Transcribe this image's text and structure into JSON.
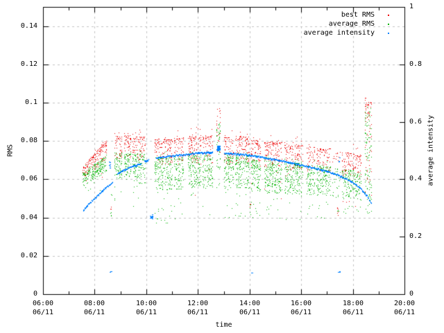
{
  "chart_data": {
    "type": "scatter",
    "title": "",
    "background": "#ffffff",
    "grid": {
      "color": "#c4c4c4",
      "dash": [
        3,
        4
      ]
    },
    "x_axis": {
      "label": "time",
      "range_hours": [
        6,
        20
      ],
      "minor_hours": [
        7,
        9,
        11,
        13,
        15,
        17,
        19
      ],
      "ticks": [
        {
          "hour": 6,
          "time": "06:00",
          "date": "06/11"
        },
        {
          "hour": 8,
          "time": "08:00",
          "date": "06/11"
        },
        {
          "hour": 10,
          "time": "10:00",
          "date": "06/11"
        },
        {
          "hour": 12,
          "time": "12:00",
          "date": "06/11"
        },
        {
          "hour": 14,
          "time": "14:00",
          "date": "06/11"
        },
        {
          "hour": 16,
          "time": "16:00",
          "date": "06/11"
        },
        {
          "hour": 18,
          "time": "18:00",
          "date": "06/11"
        },
        {
          "hour": 20,
          "time": "20:00",
          "date": "06/11"
        }
      ]
    },
    "y_left": {
      "label": "RMS",
      "range": [
        0,
        0.15
      ],
      "grid_values": [
        0.02,
        0.04,
        0.06,
        0.08,
        0.1,
        0.12,
        0.14
      ],
      "ticks": [
        {
          "value": 0,
          "label": "0"
        },
        {
          "value": 0.02,
          "label": "0.02"
        },
        {
          "value": 0.04,
          "label": "0.04"
        },
        {
          "value": 0.06,
          "label": "0.06"
        },
        {
          "value": 0.08,
          "label": "0.08"
        },
        {
          "value": 0.1,
          "label": "0.1"
        },
        {
          "value": 0.12,
          "label": "0.12"
        },
        {
          "value": 0.14,
          "label": "0.14"
        }
      ]
    },
    "y_right": {
      "label": "average intensity",
      "range": [
        0,
        1
      ],
      "ticks": [
        {
          "value": 0,
          "label": "0"
        },
        {
          "value": 0.2,
          "label": "0.2"
        },
        {
          "value": 0.4,
          "label": "0.4"
        },
        {
          "value": 0.6,
          "label": "0.6"
        },
        {
          "value": 0.8,
          "label": "0.8"
        },
        {
          "value": 1,
          "label": "1"
        }
      ]
    },
    "legend": [
      {
        "label": "best RMS",
        "color": "#ee0000"
      },
      {
        "label": "average RMS",
        "color": "#00b400"
      },
      {
        "label": "average intensity",
        "color": "#0080ff"
      }
    ],
    "series": {
      "rms_clusters_note": "dense scatter stripes; t in hours on 06/11, RMS band values read from left axis",
      "rms_stripes": [
        {
          "t": [
            7.52,
            8.47
          ],
          "rT": [
            0.0665,
            0.0805
          ],
          "rB": [
            0.0605,
            0.07
          ],
          "gT": [
            0.0635,
            0.0725
          ],
          "gB": [
            0.0565,
            0.064
          ],
          "d": 1.1,
          "oA": 0.004,
          "tD": 0.008,
          "tP": 0.025
        },
        {
          "t": [
            8.76,
            9.06
          ],
          "rT": 0.0825,
          "rB": 0.0705,
          "gT": 0.074,
          "gB": 0.0605,
          "d": 1,
          "oA": 0.005,
          "tD": 0.013,
          "tP": 0.04
        },
        {
          "t": [
            9.12,
            9.4
          ],
          "rT": 0.083,
          "rB": 0.071,
          "gT": 0.074,
          "gB": 0.06,
          "d": 1,
          "oA": 0.005,
          "tD": 0.014,
          "tP": 0.04
        },
        {
          "t": [
            9.46,
            9.97
          ],
          "rT": 0.0825,
          "rB": 0.07,
          "gT": 0.0735,
          "gB": 0.058,
          "d": 1,
          "oA": 0.006,
          "tD": 0.014,
          "tP": 0.05
        },
        {
          "t": [
            10.3,
            11.0
          ],
          "rT": 0.081,
          "rB": 0.0675,
          "gT": 0.0715,
          "gB": 0.0545,
          "d": 1,
          "oA": 0.009,
          "tD": 0.018,
          "tP": 0.07
        },
        {
          "t": [
            11.06,
            11.44
          ],
          "rT": 0.0815,
          "rB": 0.068,
          "gT": 0.072,
          "gB": 0.055,
          "d": 1,
          "oA": 0.009,
          "tD": 0.017,
          "tP": 0.06
        },
        {
          "t": [
            11.6,
            12.12
          ],
          "rT": 0.0825,
          "rB": 0.0685,
          "gT": 0.0725,
          "gB": 0.0555,
          "d": 1,
          "oA": 0.01,
          "tD": 0.017,
          "tP": 0.06
        },
        {
          "t": [
            12.17,
            12.58
          ],
          "rT": 0.0825,
          "rB": 0.0685,
          "gT": 0.0725,
          "gB": 0.0555,
          "d": 1,
          "oA": 0.008,
          "tD": 0.015,
          "tP": 0.06
        },
        {
          "t": [
            12.7,
            12.86
          ],
          "rT": 0.096,
          "rB": 0.074,
          "gT": 0.089,
          "gB": 0.063,
          "d": 0.55,
          "oA": 0.006,
          "tD": 0.009,
          "tP": 0.05
        },
        {
          "t": [
            12.99,
            13.37
          ],
          "rT": 0.082,
          "rB": 0.068,
          "gT": 0.072,
          "gB": 0.055,
          "d": 1,
          "oA": 0.007,
          "tD": 0.015,
          "tP": 0.06
        },
        {
          "t": [
            13.42,
            13.99
          ],
          "rT": 0.0825,
          "rB": 0.0685,
          "gT": 0.0725,
          "gB": 0.0555,
          "d": 1,
          "oA": 0.009,
          "tD": 0.017,
          "tP": 0.06
        },
        {
          "t": [
            14.06,
            14.42
          ],
          "rT": 0.0805,
          "rB": 0.067,
          "gT": 0.0705,
          "gB": 0.054,
          "d": 1,
          "oA": 0.008,
          "tD": 0.014,
          "tP": 0.06
        },
        {
          "t": [
            14.55,
            15.26
          ],
          "rT": 0.0795,
          "rB": 0.066,
          "gT": 0.0695,
          "gB": 0.053,
          "d": 1,
          "oA": 0.008,
          "tD": 0.015,
          "tP": 0.06
        },
        {
          "t": [
            15.33,
            16.06
          ],
          "rT": 0.078,
          "rB": 0.065,
          "gT": 0.0685,
          "gB": 0.0525,
          "d": 1,
          "oA": 0.008,
          "tD": 0.014,
          "tP": 0.06
        },
        {
          "t": [
            16.2,
            16.51
          ],
          "rT": 0.077,
          "rB": 0.0645,
          "gT": 0.0675,
          "gB": 0.052,
          "d": 1,
          "oA": 0.008,
          "tD": 0.012,
          "tP": 0.05
        },
        {
          "t": [
            16.58,
            17.14
          ],
          "rT": 0.076,
          "rB": 0.064,
          "gT": 0.067,
          "gB": 0.0515,
          "d": 1,
          "oA": 0.009,
          "tD": 0.012,
          "tP": 0.05
        },
        {
          "t": [
            17.2,
            17.52
          ],
          "rT": 0.0745,
          "rB": 0.0625,
          "gT": 0.0655,
          "gB": 0.0505,
          "d": 0.3,
          "oA": 0.008,
          "tD": 0.01,
          "tP": 0.05
        },
        {
          "t": [
            17.56,
            18.04
          ],
          "rT": 0.074,
          "rB": 0.062,
          "gT": 0.065,
          "gB": 0.05,
          "d": 1,
          "oA": 0.007,
          "tD": 0.008,
          "tP": 0.05
        },
        {
          "t": [
            18.07,
            18.32
          ],
          "rT": 0.0725,
          "rB": 0.0605,
          "gT": 0.0635,
          "gB": 0.049,
          "d": 1,
          "oA": 0.006,
          "tD": 0.006,
          "tP": 0.05
        },
        {
          "t": [
            18.46,
            18.73
          ],
          "rT": 0.1,
          "rB": 0.058,
          "gT": 0.0955,
          "gB": 0.047,
          "d": 0.5,
          "oA": 0.0035,
          "tD": 0.005,
          "tP": 0.04
        }
      ],
      "rms_low_outlier_streaks": [
        {
          "t": [
            8.6,
            8.64
          ],
          "red": [
            0.0445,
            0.047,
            3
          ],
          "green": [
            0.04,
            0.0445,
            4
          ]
        },
        {
          "t": [
            8.62,
            8.68
          ],
          "green": [
            0.0515,
            0.053,
            3
          ]
        },
        {
          "t": [
            14.0,
            14.05
          ],
          "red": [
            0.0455,
            0.049,
            4
          ],
          "green": [
            0.041,
            0.047,
            5
          ]
        },
        {
          "t": [
            17.38,
            17.46
          ],
          "red": [
            0.04,
            0.0455,
            7
          ],
          "green": [
            0.0405,
            0.044,
            3
          ]
        }
      ],
      "intensity_curve": [
        [
          7.55,
          0.29
        ],
        [
          7.75,
          0.312
        ],
        [
          8.0,
          0.334
        ],
        [
          8.25,
          0.356
        ],
        [
          8.5,
          0.375
        ],
        [
          8.71,
          0.389
        ],
        [
          8.85,
          0.418
        ],
        [
          9.1,
          0.43
        ],
        [
          9.45,
          0.445
        ],
        [
          9.8,
          0.455
        ],
        [
          9.9,
          0.462
        ],
        [
          10.11,
          0.468
        ],
        [
          10.37,
          0.474
        ],
        [
          10.8,
          0.479
        ],
        [
          11.2,
          0.483
        ],
        [
          11.6,
          0.487
        ],
        [
          12.0,
          0.491
        ],
        [
          12.3,
          0.493
        ],
        [
          12.57,
          0.493
        ],
        [
          13.0,
          0.49
        ],
        [
          13.3,
          0.489
        ],
        [
          13.7,
          0.487
        ],
        [
          14.0,
          0.483
        ],
        [
          14.5,
          0.476
        ],
        [
          15.0,
          0.468
        ],
        [
          15.5,
          0.459
        ],
        [
          16.0,
          0.449
        ],
        [
          16.5,
          0.438
        ],
        [
          17.0,
          0.427
        ],
        [
          17.4,
          0.415
        ],
        [
          17.8,
          0.398
        ],
        [
          18.1,
          0.382
        ],
        [
          18.35,
          0.362
        ],
        [
          18.55,
          0.34
        ],
        [
          18.72,
          0.314
        ]
      ],
      "intensity_gaps": [
        [
          8.71,
          8.85
        ],
        [
          9.8,
          9.9
        ],
        [
          10.11,
          10.37
        ],
        [
          12.57,
          13.0
        ]
      ],
      "intensity_blob": {
        "t": [
          12.72,
          12.83
        ],
        "i": [
          0.503,
          0.519
        ],
        "n": 30
      },
      "intensity_strays": [
        {
          "t": [
            8.56,
            8.58
          ],
          "i": [
            0.437,
            0.462
          ],
          "n": 6
        },
        {
          "t": [
            10.1,
            10.24
          ],
          "i": [
            0.262,
            0.28
          ],
          "n": 14
        },
        {
          "t": [
            8.57,
            8.63
          ],
          "i": [
            0.076,
            0.08
          ],
          "n": 3
        },
        {
          "t": [
            14.04,
            14.08
          ],
          "i": [
            0.073,
            0.077
          ],
          "n": 2
        },
        {
          "t": [
            17.4,
            17.5
          ],
          "i": [
            0.076,
            0.08
          ],
          "n": 3
        },
        {
          "t": [
            17.43,
            17.47
          ],
          "i": [
            0.458,
            0.478
          ],
          "n": 3
        }
      ]
    }
  }
}
